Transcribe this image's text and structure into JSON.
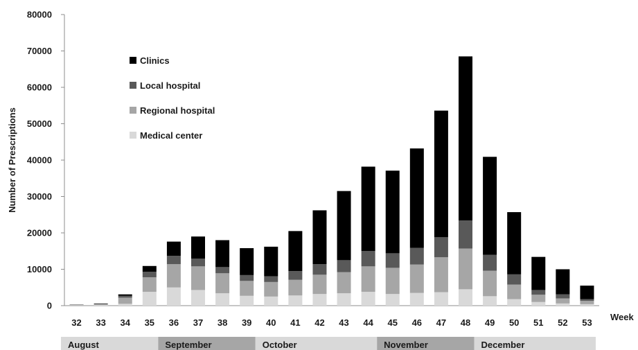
{
  "chart_data": {
    "type": "bar",
    "stacked": true,
    "title": "",
    "xlabel": "Week",
    "ylabel": "Number of Prescriptions",
    "ylim": [
      0,
      80000
    ],
    "yticks": [
      "0",
      "10000",
      "20000",
      "30000",
      "40000",
      "50000",
      "60000",
      "70000",
      "80000"
    ],
    "categories": [
      "32",
      "33",
      "34",
      "35",
      "36",
      "37",
      "38",
      "39",
      "40",
      "41",
      "42",
      "43",
      "44",
      "45",
      "46",
      "47",
      "48",
      "49",
      "50",
      "51",
      "52",
      "53"
    ],
    "legend_position": "upper-left",
    "series": [
      {
        "name": "Medical center",
        "color": "#d9d9d9",
        "values": [
          100,
          200,
          500,
          3800,
          5000,
          4300,
          3400,
          2700,
          2500,
          2800,
          3200,
          3400,
          3800,
          3200,
          3500,
          3700,
          4500,
          2600,
          1800,
          1000,
          600,
          400
        ]
      },
      {
        "name": "Regional hospital",
        "color": "#a6a6a6",
        "values": [
          100,
          200,
          1700,
          4000,
          6400,
          6500,
          5500,
          4100,
          4000,
          4300,
          5300,
          5800,
          7000,
          7200,
          7800,
          9600,
          11200,
          7000,
          4000,
          2000,
          1400,
          900
        ]
      },
      {
        "name": "Local hospital",
        "color": "#595959",
        "values": [
          50,
          100,
          500,
          1500,
          2300,
          2100,
          1700,
          1600,
          1600,
          2400,
          2900,
          3300,
          4200,
          4000,
          4600,
          5500,
          7700,
          4400,
          2800,
          1300,
          1100,
          500
        ]
      },
      {
        "name": "Clinics",
        "color": "#000000",
        "values": [
          50,
          100,
          400,
          1600,
          3900,
          6100,
          7400,
          7400,
          8100,
          11000,
          14800,
          19000,
          23200,
          22700,
          27300,
          34800,
          45100,
          26900,
          17100,
          9100,
          6900,
          3700
        ]
      }
    ],
    "months": [
      "August",
      "September",
      "October",
      "November",
      "December"
    ]
  }
}
